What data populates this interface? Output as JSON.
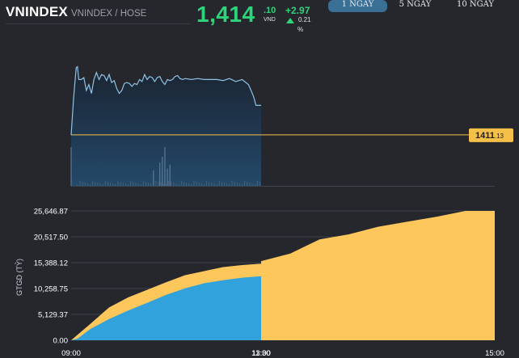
{
  "header": {
    "symbol": "VNINDEX",
    "subtitle": "VNINDEX / HOSE",
    "price_int": "1,414",
    "price_dec": ".10",
    "price_unit": "VND",
    "change": "+2.97",
    "change_pct": "0.21",
    "pct_sign": "%"
  },
  "tabs": [
    {
      "label": "1 NGÀY",
      "active": true
    },
    {
      "label": "5 NGÀY",
      "active": false
    },
    {
      "label": "10 NGÀY",
      "active": false
    }
  ],
  "colors": {
    "up": "#2ed47a",
    "reference_line": "#f5c04a",
    "price_line": "#8ec3e6",
    "today_fill": "#31a2dc",
    "prev_fill": "#fdc75c"
  },
  "chart_data": [
    {
      "type": "line",
      "name": "intraday-price",
      "reference_label": {
        "int": "1411",
        "dec": ".13"
      },
      "reference_value": 1411.13,
      "x": [
        "09:00",
        "09:02",
        "09:04",
        "09:05",
        "09:06",
        "09:08",
        "09:10",
        "09:12",
        "09:14",
        "09:16",
        "09:18",
        "09:20",
        "09:22",
        "09:24",
        "09:26",
        "09:28",
        "09:30",
        "09:32",
        "09:34",
        "09:36",
        "09:38",
        "09:40",
        "09:42",
        "09:44",
        "09:46",
        "09:48",
        "09:50",
        "09:52",
        "09:54",
        "09:56",
        "09:58",
        "10:00",
        "10:02",
        "10:04",
        "10:06",
        "10:08",
        "10:10",
        "10:12",
        "10:14",
        "10:16",
        "10:18",
        "10:20",
        "10:22",
        "10:24",
        "10:26",
        "10:28",
        "10:30",
        "10:35",
        "10:40",
        "10:45",
        "10:50",
        "10:55",
        "11:00",
        "11:05",
        "11:10",
        "11:15",
        "11:20",
        "11:22",
        "11:24",
        "11:26",
        "11:28",
        "11:30"
      ],
      "y": [
        1411.1,
        1414.9,
        1417.9,
        1418.0,
        1416.7,
        1416.7,
        1416.9,
        1415.6,
        1416.2,
        1415.3,
        1416.7,
        1417.4,
        1416.7,
        1417.2,
        1417.1,
        1416.6,
        1417.2,
        1416.4,
        1416.6,
        1415.8,
        1415.3,
        1415.6,
        1416.3,
        1416.4,
        1416.3,
        1416.0,
        1416.3,
        1416.2,
        1416.7,
        1416.5,
        1417.2,
        1416.7,
        1417.0,
        1416.9,
        1416.5,
        1416.9,
        1417.0,
        1416.5,
        1416.2,
        1416.7,
        1416.6,
        1416.7,
        1417.0,
        1417.1,
        1416.8,
        1416.7,
        1416.8,
        1416.7,
        1416.8,
        1416.7,
        1416.7,
        1416.7,
        1416.6,
        1416.8,
        1416.5,
        1416.7,
        1416.2,
        1415.6,
        1415.0,
        1414.1,
        1414.1,
        1414.1
      ],
      "volume_spikes": [
        {
          "x": "09:00",
          "v": 1.0
        },
        {
          "x": "10:05",
          "v": 0.4
        },
        {
          "x": "10:10",
          "v": 0.6
        },
        {
          "x": "10:12",
          "v": 0.75
        },
        {
          "x": "10:14",
          "v": 1.0
        },
        {
          "x": "10:16",
          "v": 0.45
        },
        {
          "x": "10:18",
          "v": 0.55
        }
      ]
    },
    {
      "type": "area",
      "name": "cumulative-value",
      "ylabel": "GTGD (TỶ)",
      "ylim": [
        0,
        25646.87
      ],
      "yticks": [
        "25,646.87",
        "20,517.50",
        "15,388.12",
        "10,258.75",
        "5,129.37",
        "0.00"
      ],
      "xticks": [
        "09:00",
        "11:30",
        "13:00",
        "15:00"
      ],
      "series": [
        {
          "x": [
            "09:00",
            "09:15",
            "09:30",
            "09:45",
            "10:00",
            "10:15",
            "10:30",
            "10:45",
            "11:00",
            "11:15",
            "11:30",
            "11:30",
            "13:00",
            "13:15",
            "13:30",
            "13:45",
            "14:00",
            "14:15",
            "14:30",
            "14:45",
            "15:00"
          ],
          "values": [
            0,
            3200,
            6500,
            8500,
            10000,
            11500,
            12900,
            13700,
            14500,
            14900,
            15200,
            15200,
            15700,
            17200,
            20000,
            21000,
            22500,
            23500,
            24500,
            25646.87,
            25646.87
          ]
        },
        {
          "x": [
            "09:00",
            "09:05",
            "09:15",
            "09:30",
            "09:45",
            "10:00",
            "10:15",
            "10:30",
            "10:45",
            "11:00",
            "11:15",
            "11:30"
          ],
          "values": [
            0,
            300,
            2200,
            4200,
            5900,
            7400,
            9000,
            10300,
            11300,
            11900,
            12400,
            12700
          ]
        }
      ]
    }
  ]
}
